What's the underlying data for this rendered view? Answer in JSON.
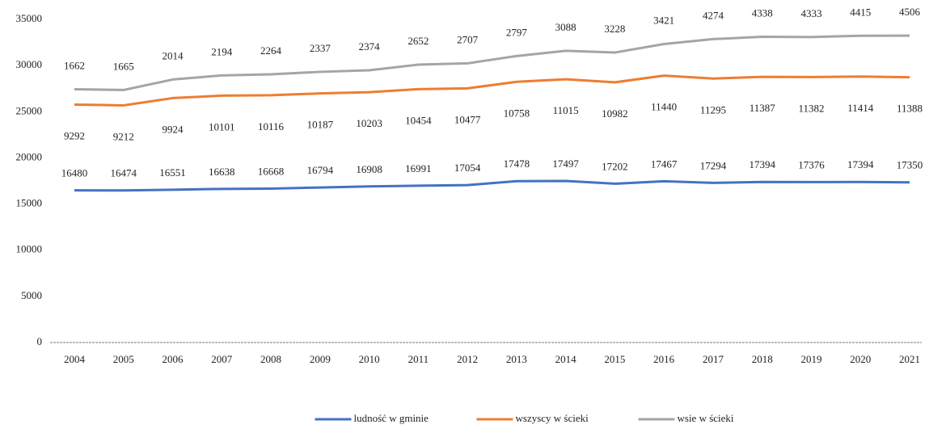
{
  "chart_data": {
    "type": "line",
    "stacked": true,
    "categories": [
      "2004",
      "2005",
      "2006",
      "2007",
      "2008",
      "2009",
      "2010",
      "2011",
      "2012",
      "2013",
      "2014",
      "2015",
      "2016",
      "2017",
      "2018",
      "2019",
      "2020",
      "2021"
    ],
    "series": [
      {
        "name": "ludność w gminie",
        "color": "#4472c4",
        "values": [
          16480,
          16474,
          16551,
          16638,
          16668,
          16794,
          16908,
          16991,
          17054,
          17478,
          17497,
          17202,
          17467,
          17294,
          17394,
          17376,
          17394,
          17350
        ]
      },
      {
        "name": "wszyscy w ścieki",
        "color": "#ed7d31",
        "values": [
          9292,
          9212,
          9924,
          10101,
          10116,
          10187,
          10203,
          10454,
          10477,
          10758,
          11015,
          10982,
          11440,
          11295,
          11387,
          11382,
          11414,
          11388
        ]
      },
      {
        "name": "wsie w ścieki",
        "color": "#a5a5a5",
        "values": [
          1662,
          1665,
          2014,
          2194,
          2264,
          2337,
          2374,
          2652,
          2707,
          2797,
          3088,
          3228,
          3421,
          4274,
          4338,
          4333,
          4415,
          4506
        ]
      }
    ],
    "ylim": [
      0,
      35000
    ],
    "yticks": [
      0,
      5000,
      10000,
      15000,
      20000,
      25000,
      30000,
      35000
    ],
    "grid": false,
    "legend": "bottom"
  }
}
